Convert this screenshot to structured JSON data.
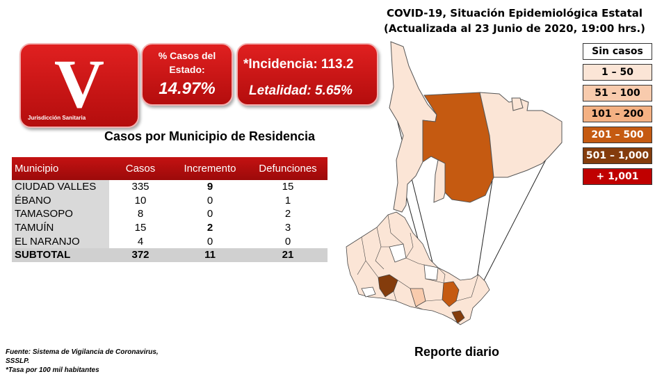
{
  "header": {
    "title_line1": "COVID-19, Situación Epidemiológica Estatal",
    "title_line2": "(Actualizada al 23 Junio de 2020, 19:00 hrs.)"
  },
  "jurisdiction_tile": {
    "letter": "V",
    "caption": "Jurisdicción Sanitaria"
  },
  "percent_tile": {
    "label": "% Casos del Estado:",
    "value": "14.97%"
  },
  "incidence_tile": {
    "incidence": "*Incidencia: 113.2",
    "lethality": "Letalidad: 5.65%"
  },
  "table": {
    "title": "Casos por Municipio  de Residencia",
    "headers": [
      "Municipio",
      "Casos",
      "Incremento",
      "Defunciones"
    ],
    "rows": [
      {
        "municipio": "CIUDAD VALLES",
        "casos": "335",
        "incremento": "9",
        "defunciones": "15"
      },
      {
        "municipio": "ÉBANO",
        "casos": "10",
        "incremento": "0",
        "defunciones": "1"
      },
      {
        "municipio": "TAMASOPO",
        "casos": "8",
        "incremento": "0",
        "defunciones": "2"
      },
      {
        "municipio": "TAMUÍN",
        "casos": "15",
        "incremento": "2",
        "defunciones": "3"
      },
      {
        "municipio": "EL NARANJO",
        "casos": "4",
        "incremento": "0",
        "defunciones": "0"
      }
    ],
    "subtotal": {
      "label": "SUBTOTAL",
      "casos": "372",
      "incremento": "11",
      "defunciones": "21"
    }
  },
  "legend": [
    {
      "label": "Sin casos",
      "color": "#ffffff",
      "text_color": "#000000"
    },
    {
      "label": "1 – 50",
      "color": "#fbe5d6",
      "text_color": "#000000"
    },
    {
      "label": "51 – 100",
      "color": "#f8cbad",
      "text_color": "#000000"
    },
    {
      "label": "101 – 200",
      "color": "#f4b183",
      "text_color": "#000000"
    },
    {
      "label": "201 – 500",
      "color": "#c55a11",
      "text_color": "#ffffff"
    },
    {
      "label": "501 – 1,000",
      "color": "#843c0c",
      "text_color": "#ffffff"
    },
    {
      "label": "+ 1,001",
      "color": "#c00000",
      "text_color": "#ffffff"
    }
  ],
  "footer": {
    "source_line1": "Fuente: Sistema de Vigilancia  de Coronavirus,",
    "source_line2": "SSSLP.",
    "note": "*Tasa por 100 mil habitantes"
  },
  "report_label": "Reporte diario"
}
